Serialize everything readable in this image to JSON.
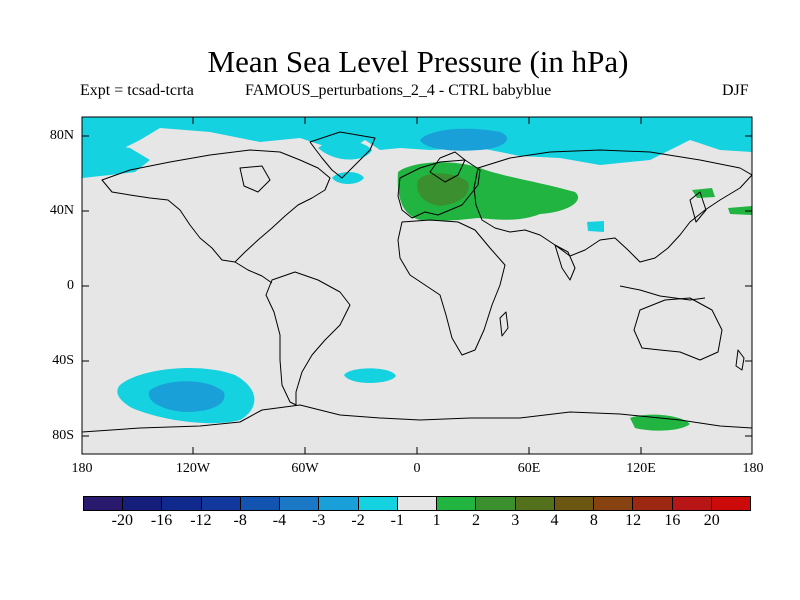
{
  "title": "Mean Sea Level Pressure (in hPa)",
  "subtitle_left": "Expt = tcsad-tcrta",
  "subtitle_center": "FAMOUS_perturbations_2_4 - CTRL babyblue",
  "season": "DJF",
  "lat_labels": [
    "80N",
    "40N",
    "0",
    "40S",
    "80S"
  ],
  "lon_labels": [
    "180",
    "120W",
    "60W",
    "0",
    "60E",
    "120E",
    "180"
  ],
  "colorbar": {
    "labels": [
      "-20",
      "-16",
      "-12",
      "-8",
      "-4",
      "-3",
      "-2",
      "-1",
      "1",
      "2",
      "3",
      "4",
      "8",
      "12",
      "16",
      "20"
    ],
    "colors": [
      "#2a1a6e",
      "#151e7a",
      "#0f2a8c",
      "#12389e",
      "#1254b0",
      "#1a78c4",
      "#1aa0d8",
      "#14d2e0",
      "#e6e6e6",
      "#22b441",
      "#3b8f2e",
      "#53701c",
      "#6b5612",
      "#874212",
      "#9d2812",
      "#b81616",
      "#cc0a0a"
    ]
  },
  "map_data": {
    "projection": "cylindrical-equidistant",
    "lon_range": [
      -180,
      180
    ],
    "lat_range": [
      -90,
      90
    ],
    "background_color": "#e6e6e6",
    "anomaly_regions": [
      {
        "label": "Arctic Ocean",
        "class": "-2 to -1"
      },
      {
        "label": "Barents / Kara Sea core",
        "class": "-3 to -2"
      },
      {
        "label": "Greenland Sea",
        "class": "-2 to -1"
      },
      {
        "label": "Labrador Sea",
        "class": "-2 to -1"
      },
      {
        "label": "Europe / Mediterranean / Central Asia",
        "class": "1 to 2"
      },
      {
        "label": "Central Europe core",
        "class": "2 to 3"
      },
      {
        "label": "Tibetan Plateau",
        "class": "-2 to -1"
      },
      {
        "label": "Western Pacific off Japan",
        "class": "1 to 2"
      },
      {
        "label": "South Pacific",
        "class": "-2 to -1"
      },
      {
        "label": "South Pacific core",
        "class": "-3 to -2"
      },
      {
        "label": "South Atlantic",
        "class": "-2 to -1"
      },
      {
        "label": "Antarctic coast south of Australia",
        "class": "1 to 2"
      }
    ]
  }
}
